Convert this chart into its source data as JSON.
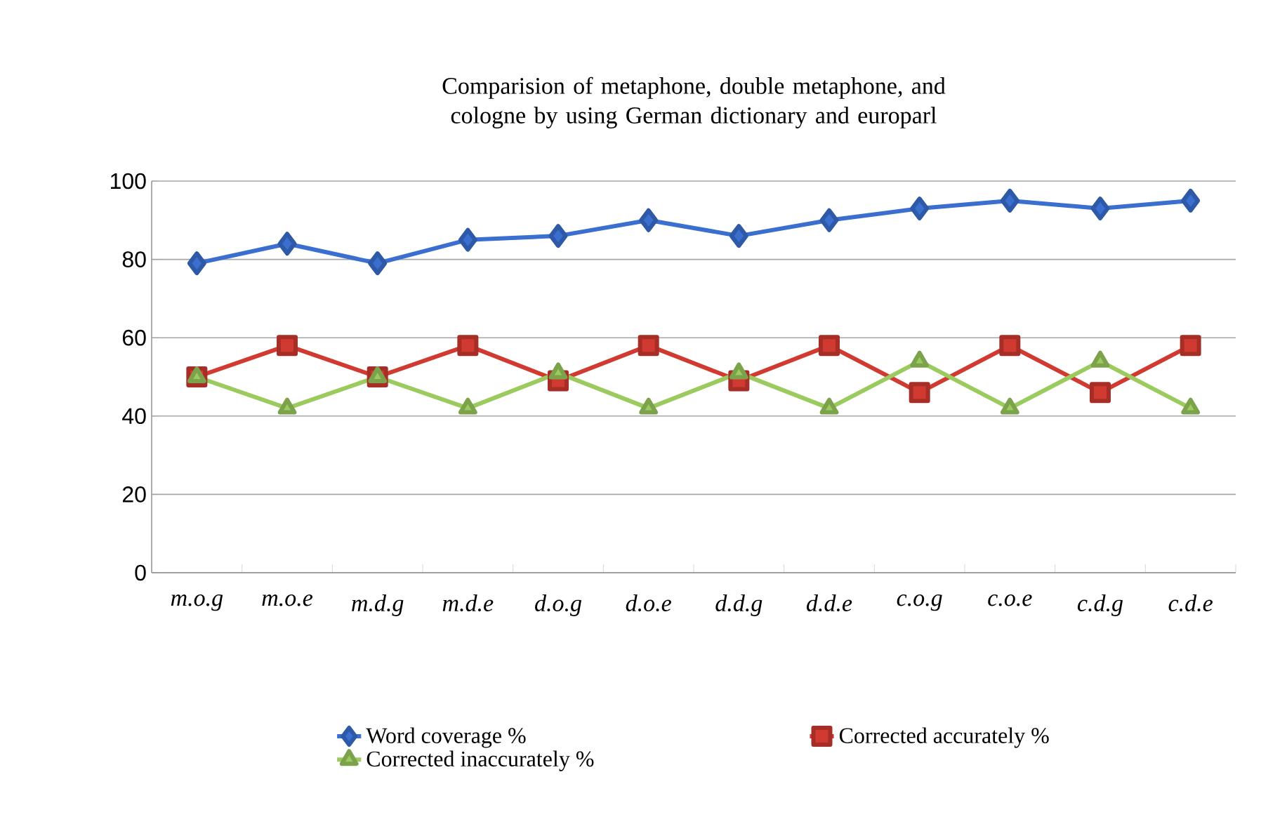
{
  "chart_data": {
    "type": "line",
    "title": "Comparision of metaphone, double metaphone, and cologne by using German dictionary and europarl",
    "categories": [
      "m.o.g",
      "m.o.e",
      "m.d.g",
      "m.d.e",
      "d.o.g",
      "d.o.e",
      "d.d.g",
      "d.d.e",
      "c.o.g",
      "c.o.e",
      "c.d.g",
      "c.d.e"
    ],
    "series": [
      {
        "name": "Word coverage %",
        "color": "#3a6fd0",
        "marker": "diamond",
        "values": [
          79,
          84,
          79,
          85,
          86,
          90,
          86,
          90,
          93,
          95,
          93,
          95
        ]
      },
      {
        "name": "Corrected accurately %",
        "color": "#d03a30",
        "marker": "square",
        "values": [
          50,
          58,
          50,
          58,
          49,
          58,
          49,
          58,
          46,
          58,
          46,
          58
        ]
      },
      {
        "name": "Corrected inaccurately %",
        "color": "#9bcb5e",
        "marker": "triangle",
        "values": [
          50,
          42,
          50,
          42,
          51,
          42,
          51,
          42,
          54,
          42,
          54,
          42
        ]
      }
    ],
    "ylim": [
      0,
      100
    ],
    "yticks": [
      0,
      20,
      40,
      60,
      80,
      100
    ],
    "grid": "y",
    "legend": "bottom"
  }
}
